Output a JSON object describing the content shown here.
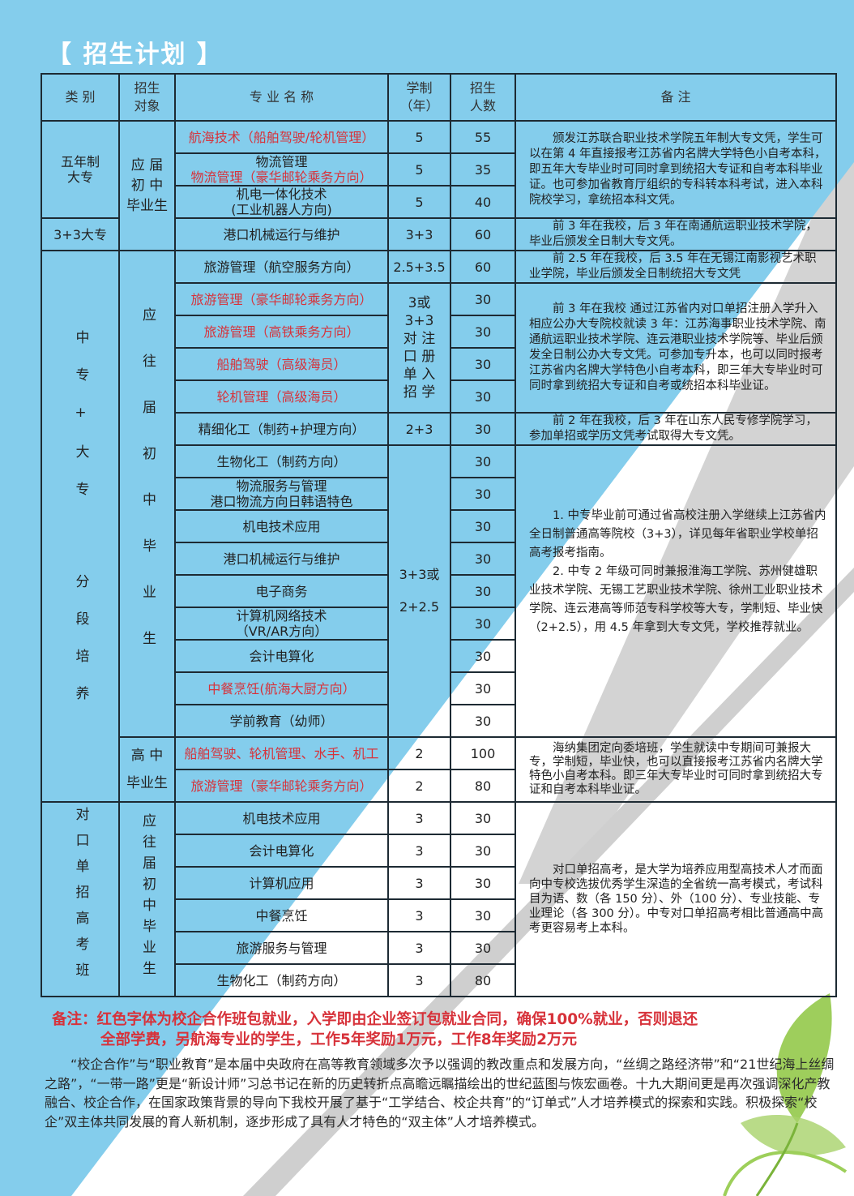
{
  "title": "【 招生计划 】",
  "colors": {
    "background_blue": "#84cdec",
    "stripe_gray": "#d3d3d3",
    "partner_red": "#d7323a",
    "title": "#ffffff"
  },
  "header": {
    "category": "类 别",
    "target": "招生\n对象",
    "major": "专 业 名 称",
    "years": "学制\n（年）",
    "enrollment": "招生\n人数",
    "remarks": "备   注"
  },
  "categories": [
    "五年制\n大专",
    "3+3大专",
    "中专+大专",
    "分段培养",
    "对口单招高考班"
  ],
  "targets": [
    "应  届\n初  中\n毕业生",
    "应往届初中毕业生",
    "高 中\n毕业生",
    "应往届初中毕业生"
  ],
  "merged_years": [
    "3或\n3+3\n对 注\n口 册\n单 入\n招 学",
    "3+3或\n\n2+2.5"
  ],
  "rows": [
    {
      "major": "航海技术（船舶驾驶/轮机管理）",
      "years": "5",
      "count": "55",
      "partner": true
    },
    {
      "major": "物流管理",
      "major_2": "物流管理（豪华邮轮乘务方向）",
      "years": "5",
      "count": "35",
      "partner": true
    },
    {
      "major": "机电一体化技术\n(工业机器人方向)",
      "years": "5",
      "count": "40"
    },
    {
      "major": "港口机械运行与维护",
      "years": "3+3",
      "count": "60"
    },
    {
      "major": "旅游管理（航空服务方向）",
      "years": "2.5+3.5",
      "count": "60"
    },
    {
      "major": "旅游管理（豪华邮轮乘务方向）",
      "count": "30",
      "partner": true
    },
    {
      "major": "旅游管理（高铁乘务方向）",
      "count": "30",
      "partner": true
    },
    {
      "major": "船舶驾驶（高级海员）",
      "count": "30",
      "partner": true
    },
    {
      "major": "轮机管理（高级海员）",
      "count": "30",
      "partner": true
    },
    {
      "major": "精细化工（制药+护理方向）",
      "years": "2+3",
      "count": "30"
    },
    {
      "major": "生物化工（制药方向）",
      "count": "30"
    },
    {
      "major": "物流服务与管理\n港口物流方向日韩语特色",
      "count": "30"
    },
    {
      "major": "机电技术应用",
      "count": "30"
    },
    {
      "major": "港口机械运行与维护",
      "count": "30"
    },
    {
      "major": "电子商务",
      "count": "30"
    },
    {
      "major": "计算机网络技术\n（VR/AR方向）",
      "count": "30"
    },
    {
      "major": "会计电算化",
      "count": "30"
    },
    {
      "major": "中餐烹饪(航海大厨方向）",
      "count": "30",
      "partner": true
    },
    {
      "major": "学前教育（幼师）",
      "count": "30"
    },
    {
      "major": "船舶驾驶、轮机管理、水手、机工",
      "years": "2",
      "count": "100",
      "partner": true
    },
    {
      "major": "旅游管理（豪华邮轮乘务方向）",
      "years": "2",
      "count": "80",
      "partner": true
    },
    {
      "major": "机电技术应用",
      "years": "3",
      "count": "30"
    },
    {
      "major": "会计电算化",
      "years": "3",
      "count": "30"
    },
    {
      "major": "计算机应用",
      "years": "3",
      "count": "30"
    },
    {
      "major": "中餐烹饪",
      "years": "3",
      "count": "30"
    },
    {
      "major": "旅游服务与管理",
      "years": "3",
      "count": "30"
    },
    {
      "major": "生物化工（制药方向）",
      "years": "3",
      "count": "80"
    }
  ],
  "notes": [
    "颁发江苏联合职业技术学院五年制大专文凭，学生可以在第 4 年直接报考江苏省内名牌大学特色小自考本科，即五年大专毕业时可同时拿到统招大专证和自考本科毕业证。也可参加省教育厅组织的专科转本科考试，进入本科院校学习，拿统招本科文凭。",
    "前 3 年在我校，后 3 年在南通航运职业技术学院，毕业后颁发全日制大专文凭。",
    "前 2.5 年在我校，后 3.5 年在无锡江南影视艺术职业学院，毕业后颁发全日制统招大专文凭",
    "前 3 年在我校 通过江苏省内对口单招注册入学升入相应公办大专院校就读 3 年：江苏海事职业技术学院、南通航运职业技术学院、连云港职业技术学院等、毕业后颁发全日制公办大专文凭。可参加专升本，也可以同时报考江苏省内名牌大学特色小自考本科，即三年大专毕业时可同时拿到统招大专证和自考或统招本科毕业证。",
    "前 2 年在我校，后 3 年在山东人民专修学院学习，参加单招或学历文凭考试取得大专文凭。",
    "1. 中专毕业前可通过省高校注册入学继续上江苏省内全日制普通高等院校（3+3），详见每年省职业学校单招高考报考指南。",
    "2. 中专 2 年级可同时兼报淮海工学院、苏州健雄职业技术学院、无锡工艺职业技术学院、徐州工业职业技术学院、连云港高等师范专科学校等大专，学制短、毕业快（2+2.5），用 4.5 年拿到大专文凭，学校推荐就业。",
    "海纳集团定向委培班，学生就读中专期间可兼报大专，学制短，毕业快，也可以直接报考江苏省内名牌大学特色小自考本科。即三年大专毕业时可同时拿到统招大专证和自考本科毕业证。",
    "对口单招高考，是大学为培养应用型高技术人才而面向中专校选拔优秀学生深造的全省统一高考模式，考试科目为语、数（各 150 分）、外（100 分）、专业技能、专业理论（各 300 分）。中专对口单招高考相比普通高中高考更容易考上本科。"
  ],
  "remark": {
    "line1": "备注：红色字体为校企合作班包就业，入学即由企业签订包就业合同，确保100%就业，否则退还",
    "line2": "全部学费，另航海专业的学生，工作5年奖励1万元，工作8年奖励2万元"
  },
  "intro": "“校企合作”与“职业教育”是本届中央政府在高等教育领域多次予以强调的教改重点和发展方向，“丝绸之路经济带”和“21世纪海上丝绸之路”，“一带一路”更是“新设计师”习总书记在新的历史转折点高瞻远瞩描绘出的世纪蓝图与恢宏画卷。十九大期间更是再次强调深化产教融合、校企合作，在国家政策背景的导向下我校开展了基于“工学结合、校企共育”的“订单式”人才培养模式的探索和实践。积极探索“校企”双主体共同发展的育人新机制，逐步形成了具有人才特色的“双主体”人才培养模式。"
}
